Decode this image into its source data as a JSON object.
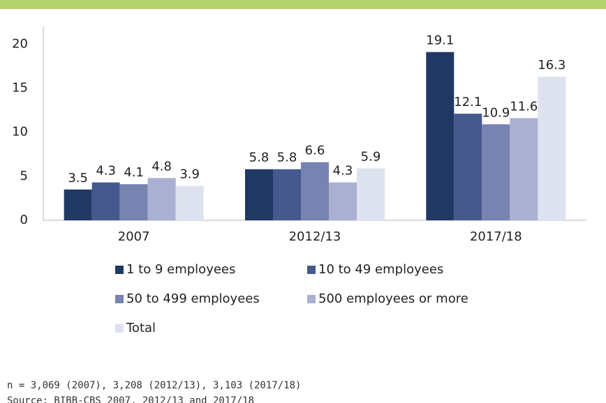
{
  "chart_data": {
    "type": "bar",
    "categories": [
      "2007",
      "2012/13",
      "2017/18"
    ],
    "series": [
      {
        "name": "1 to 9 employees",
        "color": "#203864",
        "values": [
          3.5,
          5.8,
          19.1
        ]
      },
      {
        "name": "10 to 49 employees",
        "color": "#45598e",
        "values": [
          4.3,
          5.8,
          12.1
        ]
      },
      {
        "name": "50 to 499 employees",
        "color": "#7783b0",
        "values": [
          4.1,
          6.6,
          10.9
        ]
      },
      {
        "name": "500 employees or more",
        "color": "#a9b0d1",
        "values": [
          4.8,
          4.3,
          11.6
        ]
      },
      {
        "name": "Total",
        "color": "#dde2ee",
        "values": [
          3.9,
          5.9,
          16.3
        ]
      }
    ],
    "ylim": [
      0,
      22
    ],
    "yticks": [
      0,
      5,
      10,
      15,
      20
    ],
    "notes": [
      "n = 3,069 (2007), 3,208 (2012/13), 3,103 (2017/18)",
      "Source: BIBB-CBS 2007, 2012/13 and 2017/18"
    ]
  }
}
